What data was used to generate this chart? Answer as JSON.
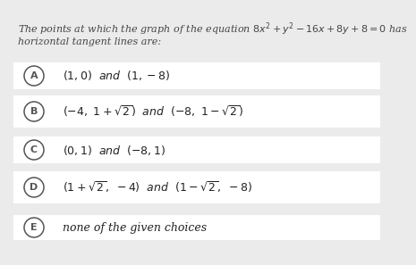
{
  "background_color": "#ebebeb",
  "option_box_color": "#ffffff",
  "title_line1": "The points at which the graph of the equation $8x^2+y^2-16x+8y+8=0$ has",
  "title_line2": "horizontal tangent lines are:",
  "options": [
    {
      "label": "A",
      "text": "$(1,0)$  $and$  $(1,-8)$"
    },
    {
      "label": "B",
      "text": "$(-4,\\ 1+\\sqrt{2})$  $and$  $(-8,\\ 1-\\sqrt{2})$"
    },
    {
      "label": "C",
      "text": "$(0,1)$  $and$  $(-8,1)$"
    },
    {
      "label": "D",
      "text": "$(1+\\sqrt{2},\\ -4)$  $and$  $(1-\\sqrt{2},\\ -8)$"
    },
    {
      "label": "E",
      "text": "none of the given choices"
    }
  ],
  "circle_color": "#555555",
  "text_color": "#222222",
  "title_color": "#444444",
  "font_size_title": 8.0,
  "font_size_options": 9.0,
  "font_size_label": 8.0
}
